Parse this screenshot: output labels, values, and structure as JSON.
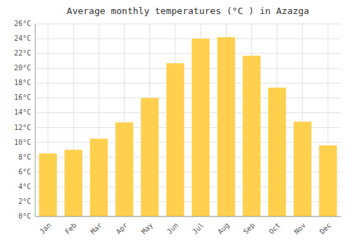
{
  "chart_data": {
    "type": "bar",
    "title": "Average monthly temperatures (°C ) in Azazga",
    "categories": [
      "Jan",
      "Feb",
      "Mar",
      "Apr",
      "May",
      "Jun",
      "Jul",
      "Aug",
      "Sep",
      "Oct",
      "Nov",
      "Dec"
    ],
    "values": [
      8.5,
      9.0,
      10.5,
      12.7,
      16.0,
      20.7,
      24.0,
      24.2,
      21.7,
      17.4,
      12.8,
      9.6
    ],
    "color": "#FFD04D",
    "ylim": [
      0,
      26
    ],
    "yticks": [
      {
        "value": 0,
        "label": "0°C"
      },
      {
        "value": 2,
        "label": "2°C"
      },
      {
        "value": 4,
        "label": "4°C"
      },
      {
        "value": 6,
        "label": "6°C"
      },
      {
        "value": 8,
        "label": "8°C"
      },
      {
        "value": 10,
        "label": "10°C"
      },
      {
        "value": 12,
        "label": "12°C"
      },
      {
        "value": 14,
        "label": "14°C"
      },
      {
        "value": 16,
        "label": "16°C"
      },
      {
        "value": 18,
        "label": "18°C"
      },
      {
        "value": 20,
        "label": "20°C"
      },
      {
        "value": 22,
        "label": "22°C"
      },
      {
        "value": 24,
        "label": "24°C"
      },
      {
        "value": 26,
        "label": "26°C"
      }
    ],
    "grid": true
  }
}
